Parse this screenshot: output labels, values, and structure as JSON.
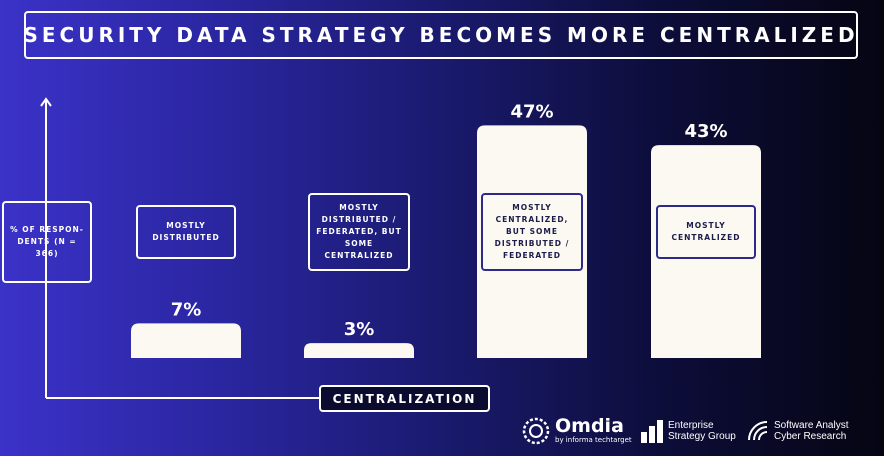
{
  "title": "SECURITY DATA STRATEGY BECOMES MORE CENTRALIZED",
  "y_axis_label": "% OF RESPON-DENTS (N = 366)",
  "x_axis_label": "CENTRALIZATION",
  "colors": {
    "bar": "#fbf9f1",
    "axis": "#ffffff",
    "box_border_on_light": "#2e2a8c"
  },
  "chart_data": {
    "type": "bar",
    "title": "SECURITY DATA STRATEGY BECOMES MORE CENTRALIZED",
    "xlabel": "CENTRALIZATION",
    "ylabel": "% OF RESPON-DENTS (N = 366)",
    "categories": [
      "MOSTLY DISTRIBUTED",
      "MOSTLY DISTRIBUTED / FEDERATED, BUT SOME CENTRALIZED",
      "MOSTLY CENTRALIZED, BUT SOME DISTRIBUTED / FEDERATED",
      "MOSTLY CENTRALIZED"
    ],
    "values": [
      7,
      3,
      47,
      43
    ],
    "value_labels": [
      "7%",
      "3%",
      "47%",
      "43%"
    ],
    "ylim": [
      0,
      50
    ],
    "grid": false,
    "legend": "none"
  },
  "logos": {
    "omdia": {
      "name": "Omdia",
      "sub": "by informa techtarget",
      "icon": "omdia-ring-icon"
    },
    "esg": {
      "line1": "Enterprise",
      "line2": "Strategy Group",
      "icon": "bar-stack-icon"
    },
    "sacr": {
      "line1": "Software Analyst",
      "line2": "Cyber Research",
      "icon": "wifi-arc-icon"
    }
  }
}
